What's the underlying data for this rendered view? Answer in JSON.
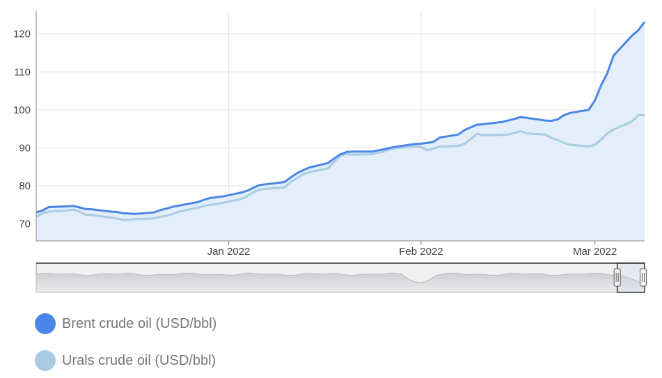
{
  "chart_data": {
    "type": "line",
    "title": "",
    "xlabel": "",
    "ylabel": "",
    "x_start": "2021-12-01",
    "x_end": "2022-03-09",
    "ylim": [
      65.5,
      126
    ],
    "yticks": [
      70,
      80,
      90,
      100,
      110,
      120
    ],
    "xticks": [
      {
        "date": "2022-01-01",
        "label": "Jan 2022"
      },
      {
        "date": "2022-02-01",
        "label": "Feb 2022"
      },
      {
        "date": "2022-03-01",
        "label": "Mar 2022"
      }
    ],
    "grid": true,
    "legend_position": "bottom-left",
    "series": [
      {
        "name": "Brent crude oil (USD/bbl)",
        "color": "#4a86e8",
        "points": [
          [
            "2021-12-01",
            73.0
          ],
          [
            "2021-12-02",
            73.5
          ],
          [
            "2021-12-03",
            74.4
          ],
          [
            "2021-12-06",
            74.6
          ],
          [
            "2021-12-07",
            74.7
          ],
          [
            "2021-12-08",
            74.3
          ],
          [
            "2021-12-09",
            73.9
          ],
          [
            "2021-12-10",
            73.8
          ],
          [
            "2021-12-13",
            73.2
          ],
          [
            "2021-12-14",
            73.1
          ],
          [
            "2021-12-15",
            72.8
          ],
          [
            "2021-12-16",
            72.7
          ],
          [
            "2021-12-17",
            72.6
          ],
          [
            "2021-12-20",
            73.0
          ],
          [
            "2021-12-21",
            73.6
          ],
          [
            "2021-12-22",
            74.0
          ],
          [
            "2021-12-23",
            74.5
          ],
          [
            "2021-12-24",
            74.8
          ],
          [
            "2021-12-27",
            75.7
          ],
          [
            "2021-12-28",
            76.3
          ],
          [
            "2021-12-29",
            76.8
          ],
          [
            "2021-12-30",
            77.0
          ],
          [
            "2021-12-31",
            77.2
          ],
          [
            "2022-01-03",
            78.2
          ],
          [
            "2022-01-04",
            78.7
          ],
          [
            "2022-01-05",
            79.5
          ],
          [
            "2022-01-06",
            80.2
          ],
          [
            "2022-01-07",
            80.4
          ],
          [
            "2022-01-10",
            81.0
          ],
          [
            "2022-01-11",
            82.2
          ],
          [
            "2022-01-12",
            83.3
          ],
          [
            "2022-01-13",
            84.1
          ],
          [
            "2022-01-14",
            84.8
          ],
          [
            "2022-01-17",
            86.0
          ],
          [
            "2022-01-18",
            87.2
          ],
          [
            "2022-01-19",
            88.3
          ],
          [
            "2022-01-20",
            88.9
          ],
          [
            "2022-01-21",
            89.0
          ],
          [
            "2022-01-24",
            89.0
          ],
          [
            "2022-01-25",
            89.3
          ],
          [
            "2022-01-26",
            89.6
          ],
          [
            "2022-01-27",
            90.0
          ],
          [
            "2022-01-28",
            90.3
          ],
          [
            "2022-01-31",
            91.0
          ],
          [
            "2022-02-01",
            91.1
          ],
          [
            "2022-02-02",
            91.3
          ],
          [
            "2022-02-03",
            91.6
          ],
          [
            "2022-02-04",
            92.7
          ],
          [
            "2022-02-07",
            93.5
          ],
          [
            "2022-02-08",
            94.7
          ],
          [
            "2022-02-09",
            95.4
          ],
          [
            "2022-02-10",
            96.1
          ],
          [
            "2022-02-11",
            96.2
          ],
          [
            "2022-02-14",
            96.8
          ],
          [
            "2022-02-15",
            97.2
          ],
          [
            "2022-02-16",
            97.6
          ],
          [
            "2022-02-17",
            98.1
          ],
          [
            "2022-02-18",
            97.9
          ],
          [
            "2022-02-21",
            97.2
          ],
          [
            "2022-02-22",
            97.1
          ],
          [
            "2022-02-23",
            97.5
          ],
          [
            "2022-02-24",
            98.6
          ],
          [
            "2022-02-25",
            99.2
          ],
          [
            "2022-02-28",
            100.0
          ],
          [
            "2022-03-01",
            102.5
          ],
          [
            "2022-03-02",
            106.5
          ],
          [
            "2022-03-03",
            109.7
          ],
          [
            "2022-03-04",
            114.3
          ],
          [
            "2022-03-07",
            119.6
          ],
          [
            "2022-03-08",
            121.0
          ],
          [
            "2022-03-09",
            123.2
          ]
        ]
      },
      {
        "name": "Urals crude oil (USD/bbl)",
        "color": "#a9cce3",
        "points": [
          [
            "2021-12-01",
            71.8
          ],
          [
            "2021-12-02",
            72.7
          ],
          [
            "2021-12-03",
            73.2
          ],
          [
            "2021-12-06",
            73.5
          ],
          [
            "2021-12-07",
            73.7
          ],
          [
            "2021-12-08",
            73.2
          ],
          [
            "2021-12-09",
            72.4
          ],
          [
            "2021-12-10",
            72.3
          ],
          [
            "2021-12-13",
            71.6
          ],
          [
            "2021-12-14",
            71.4
          ],
          [
            "2021-12-15",
            71.0
          ],
          [
            "2021-12-16",
            71.1
          ],
          [
            "2021-12-17",
            71.2
          ],
          [
            "2021-12-20",
            71.4
          ],
          [
            "2021-12-21",
            71.8
          ],
          [
            "2021-12-22",
            72.1
          ],
          [
            "2021-12-23",
            72.6
          ],
          [
            "2021-12-24",
            73.2
          ],
          [
            "2021-12-27",
            74.2
          ],
          [
            "2021-12-28",
            74.7
          ],
          [
            "2021-12-29",
            75.0
          ],
          [
            "2021-12-30",
            75.2
          ],
          [
            "2021-12-31",
            75.5
          ],
          [
            "2022-01-03",
            76.5
          ],
          [
            "2022-01-04",
            77.3
          ],
          [
            "2022-01-05",
            78.3
          ],
          [
            "2022-01-06",
            79.0
          ],
          [
            "2022-01-07",
            79.2
          ],
          [
            "2022-01-10",
            79.6
          ],
          [
            "2022-01-11",
            81.0
          ],
          [
            "2022-01-12",
            82.0
          ],
          [
            "2022-01-13",
            83.0
          ],
          [
            "2022-01-14",
            83.6
          ],
          [
            "2022-01-17",
            84.6
          ],
          [
            "2022-01-18",
            86.3
          ],
          [
            "2022-01-19",
            88.0
          ],
          [
            "2022-01-20",
            88.3
          ],
          [
            "2022-01-21",
            88.2
          ],
          [
            "2022-01-24",
            88.3
          ],
          [
            "2022-01-25",
            88.7
          ],
          [
            "2022-01-26",
            89.0
          ],
          [
            "2022-01-27",
            89.6
          ],
          [
            "2022-01-28",
            89.9
          ],
          [
            "2022-01-31",
            90.4
          ],
          [
            "2022-02-01",
            90.2
          ],
          [
            "2022-02-02",
            89.4
          ],
          [
            "2022-02-03",
            89.8
          ],
          [
            "2022-02-04",
            90.3
          ],
          [
            "2022-02-07",
            90.5
          ],
          [
            "2022-02-08",
            91.1
          ],
          [
            "2022-02-09",
            92.3
          ],
          [
            "2022-02-10",
            93.7
          ],
          [
            "2022-02-11",
            93.3
          ],
          [
            "2022-02-14",
            93.4
          ],
          [
            "2022-02-15",
            93.5
          ],
          [
            "2022-02-16",
            93.9
          ],
          [
            "2022-02-17",
            94.4
          ],
          [
            "2022-02-18",
            93.8
          ],
          [
            "2022-02-21",
            93.5
          ],
          [
            "2022-02-22",
            92.6
          ],
          [
            "2022-02-23",
            92.1
          ],
          [
            "2022-02-24",
            91.3
          ],
          [
            "2022-02-25",
            90.8
          ],
          [
            "2022-02-28",
            90.4
          ],
          [
            "2022-03-01",
            90.8
          ],
          [
            "2022-03-02",
            92.2
          ],
          [
            "2022-03-03",
            93.8
          ],
          [
            "2022-03-04",
            94.8
          ],
          [
            "2022-03-07",
            97.0
          ],
          [
            "2022-03-08",
            98.6
          ],
          [
            "2022-03-09",
            98.6
          ]
        ]
      }
    ]
  },
  "navigator": {
    "handle_left_position": 0.955,
    "handle_right_position": 1.0
  },
  "colors": {
    "area_fill": "#e4edfa",
    "grid": "#e6e6e6",
    "axis": "#888888",
    "tick_text": "#444444",
    "legend_text": "#777777"
  }
}
